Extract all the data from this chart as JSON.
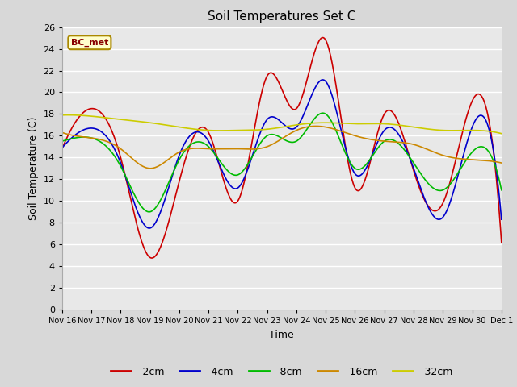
{
  "title": "Soil Temperatures Set C",
  "xlabel": "Time",
  "ylabel": "Soil Temperature (C)",
  "ylim": [
    0,
    26
  ],
  "yticks": [
    0,
    2,
    4,
    6,
    8,
    10,
    12,
    14,
    16,
    18,
    20,
    22,
    24,
    26
  ],
  "figure_bg": "#d8d8d8",
  "plot_bg": "#e8e8e8",
  "legend_entries": [
    "-2cm",
    "-4cm",
    "-8cm",
    "-16cm",
    "-32cm"
  ],
  "line_colors": [
    "#cc0000",
    "#0000cc",
    "#00bb00",
    "#cc8800",
    "#cccc00"
  ],
  "annotation_text": "BC_met",
  "annotation_bg": "#ffffcc",
  "annotation_border": "#aa8800",
  "annotation_text_color": "#880000",
  "x_tick_labels": [
    "Nov 16",
    "Nov 17",
    "Nov 18",
    "Nov 19",
    "Nov 20",
    "Nov 21",
    "Nov 22",
    "Nov 23",
    "Nov 24",
    "Nov 25",
    "Nov 26",
    "Nov 27",
    "Nov 28",
    "Nov 29",
    "Nov 30",
    "Dec 1"
  ],
  "n_points": 16,
  "series_2cm": [
    14.8,
    18.5,
    14.0,
    4.8,
    11.8,
    16.3,
    10.0,
    21.5,
    18.5,
    24.8,
    11.2,
    18.0,
    12.8,
    9.8,
    19.2,
    6.2
  ],
  "series_4cm": [
    14.9,
    16.7,
    13.5,
    7.5,
    14.2,
    15.5,
    11.2,
    17.5,
    16.8,
    21.0,
    12.5,
    16.5,
    13.0,
    8.5,
    16.8,
    8.3
  ],
  "series_8cm": [
    15.5,
    15.8,
    13.2,
    9.0,
    13.8,
    15.0,
    12.4,
    16.0,
    15.5,
    18.0,
    13.0,
    15.5,
    13.5,
    11.0,
    14.5,
    11.0
  ],
  "series_16cm": [
    16.3,
    15.8,
    14.8,
    13.0,
    14.5,
    14.8,
    14.8,
    15.0,
    16.5,
    16.8,
    16.0,
    15.5,
    15.2,
    14.2,
    13.8,
    13.5
  ],
  "series_32cm": [
    17.9,
    17.8,
    17.5,
    17.2,
    16.8,
    16.5,
    16.5,
    16.6,
    17.0,
    17.2,
    17.1,
    17.1,
    16.8,
    16.5,
    16.5,
    16.2
  ]
}
